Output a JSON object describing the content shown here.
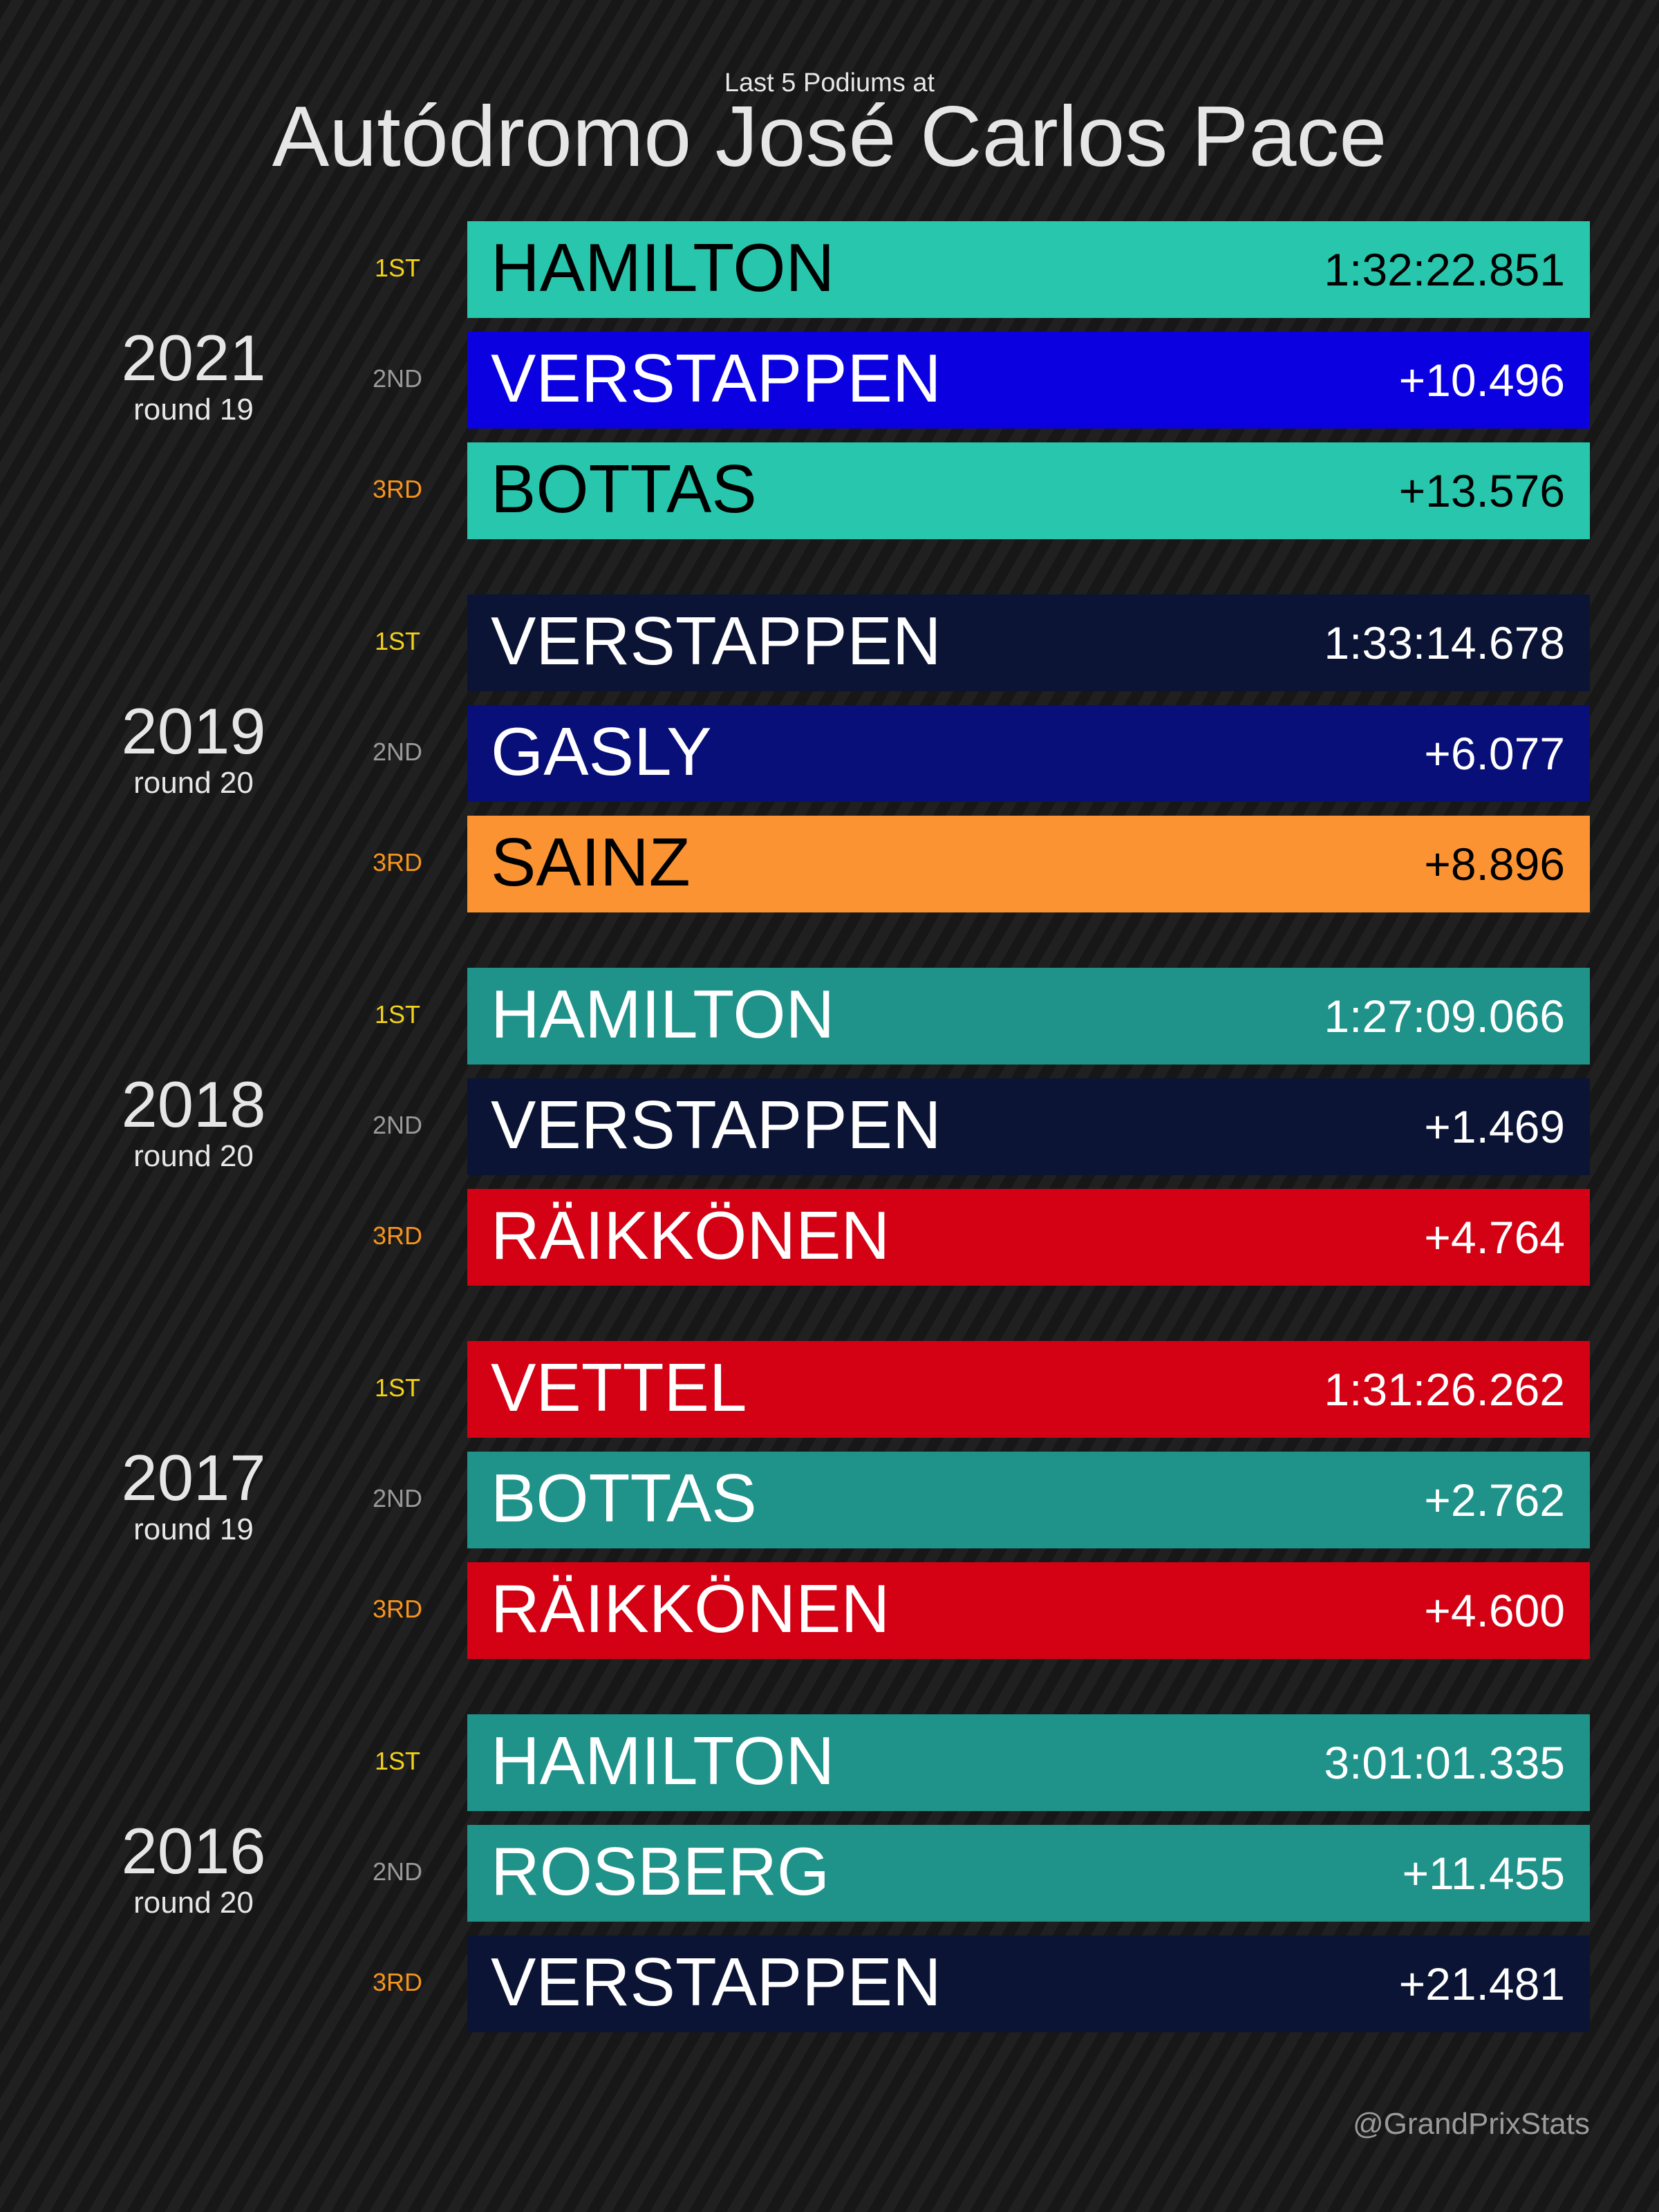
{
  "header": {
    "subtitle": "Last 5 Podiums at",
    "title": "Autódromo José Carlos Pace"
  },
  "races": [
    {
      "year": "2021",
      "round": "round 19",
      "podium": [
        {
          "position": "1ST",
          "driver": "HAMILTON",
          "time": "1:32:22.851",
          "color": "#27c6ad",
          "text_color": "#000000"
        },
        {
          "position": "2ND",
          "driver": "VERSTAPPEN",
          "time": "+10.496",
          "color": "#0a00e0",
          "text_color": "#ffffff"
        },
        {
          "position": "3RD",
          "driver": "BOTTAS",
          "time": "+13.576",
          "color": "#27c6ad",
          "text_color": "#000000"
        }
      ]
    },
    {
      "year": "2019",
      "round": "round 20",
      "podium": [
        {
          "position": "1ST",
          "driver": "VERSTAPPEN",
          "time": "1:33:14.678",
          "color": "#0b1434",
          "text_color": "#ffffff"
        },
        {
          "position": "2ND",
          "driver": "GASLY",
          "time": "+6.077",
          "color": "#080f78",
          "text_color": "#ffffff"
        },
        {
          "position": "3RD",
          "driver": "SAINZ",
          "time": "+8.896",
          "color": "#fb9332",
          "text_color": "#000000"
        }
      ]
    },
    {
      "year": "2018",
      "round": "round 20",
      "podium": [
        {
          "position": "1ST",
          "driver": "HAMILTON",
          "time": "1:27:09.066",
          "color": "#1f928a",
          "text_color": "#ffffff"
        },
        {
          "position": "2ND",
          "driver": "VERSTAPPEN",
          "time": "+1.469",
          "color": "#0b1434",
          "text_color": "#ffffff"
        },
        {
          "position": "3RD",
          "driver": "RÄIKKÖNEN",
          "time": "+4.764",
          "color": "#d40014",
          "text_color": "#ffffff"
        }
      ]
    },
    {
      "year": "2017",
      "round": "round 19",
      "podium": [
        {
          "position": "1ST",
          "driver": "VETTEL",
          "time": "1:31:26.262",
          "color": "#d40014",
          "text_color": "#ffffff"
        },
        {
          "position": "2ND",
          "driver": "BOTTAS",
          "time": "+2.762",
          "color": "#1f928a",
          "text_color": "#ffffff"
        },
        {
          "position": "3RD",
          "driver": "RÄIKKÖNEN",
          "time": "+4.600",
          "color": "#d40014",
          "text_color": "#ffffff"
        }
      ]
    },
    {
      "year": "2016",
      "round": "round 20",
      "podium": [
        {
          "position": "1ST",
          "driver": "HAMILTON",
          "time": "3:01:01.335",
          "color": "#1f928a",
          "text_color": "#ffffff"
        },
        {
          "position": "2ND",
          "driver": "ROSBERG",
          "time": "+11.455",
          "color": "#1f928a",
          "text_color": "#ffffff"
        },
        {
          "position": "3RD",
          "driver": "VERSTAPPEN",
          "time": "+21.481",
          "color": "#0b1434",
          "text_color": "#ffffff"
        }
      ]
    }
  ],
  "footer": {
    "credit": "@GrandPrixStats"
  }
}
